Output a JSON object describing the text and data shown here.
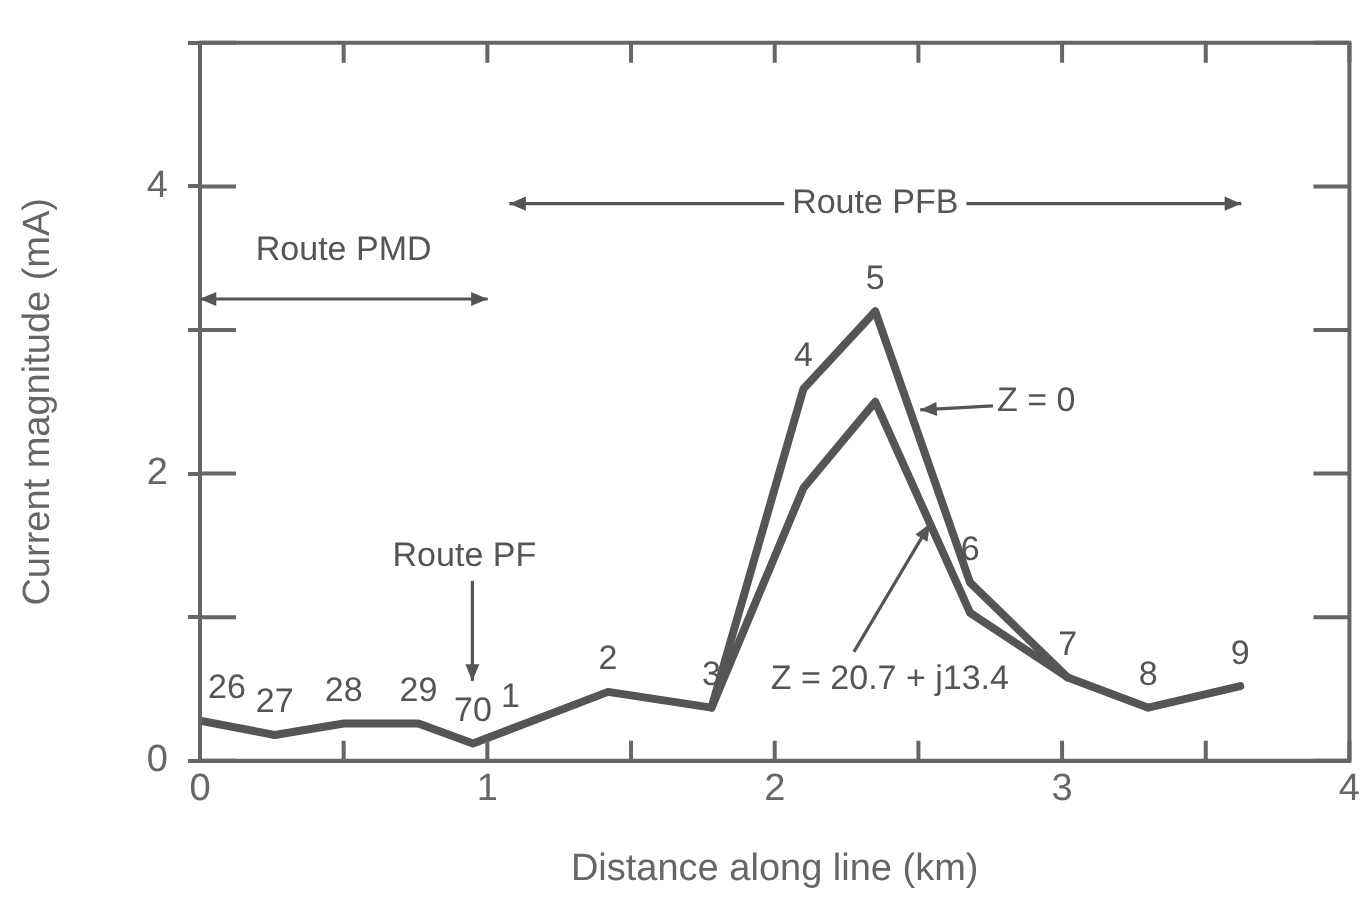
{
  "chart_data": {
    "type": "line",
    "xlabel": "Distance along line (km)",
    "ylabel": "Current magnitude (mA)",
    "xlim": [
      0,
      4
    ],
    "ylim": [
      0,
      5
    ],
    "xticks": [
      0,
      {
        "value": 0.5,
        "label": null
      },
      1,
      {
        "value": 1.5,
        "label": null
      },
      2,
      {
        "value": 2.5,
        "label": null
      },
      3,
      {
        "value": 3.5,
        "label": null
      },
      4
    ],
    "yticks": [
      0,
      {
        "value": 1,
        "label": null
      },
      2,
      {
        "value": 3,
        "label": null
      },
      4,
      {
        "value": 5,
        "label": null
      }
    ],
    "grid": false,
    "legend": false,
    "marker": "none",
    "line_style": "solid",
    "series": [
      {
        "color": "#555555",
        "x": [
          0,
          0.26,
          0.5,
          0.76,
          0.95,
          1.08,
          1.42,
          1.78,
          2.1,
          2.35,
          2.68,
          3.02,
          3.3,
          3.62
        ],
        "values": [
          0.28,
          0.18,
          0.26,
          0.26,
          0.12,
          0.22,
          0.48,
          0.37,
          2.59,
          3.13,
          1.24,
          0.58,
          0.37,
          0.52
        ]
      },
      {
        "color": "#555555",
        "x": [
          1.78,
          2.1,
          2.35,
          2.68,
          3.02
        ],
        "values": [
          0.37,
          1.9,
          2.5,
          1.03,
          0.58
        ]
      }
    ],
    "annotations": [
      {
        "text": "26",
        "x": 0,
        "y": 0.28
      },
      {
        "text": "27",
        "x": 0.26,
        "y": 0.18
      },
      {
        "text": "28",
        "x": 0.5,
        "y": 0.26
      },
      {
        "text": "29",
        "x": 0.76,
        "y": 0.26
      },
      {
        "text": "70",
        "x": 0.95,
        "y": 0.12
      },
      {
        "text": "1",
        "x": 1.08,
        "y": 0.22
      },
      {
        "text": "2",
        "x": 1.42,
        "y": 0.48
      },
      {
        "text": "3",
        "x": 1.78,
        "y": 0.37
      },
      {
        "text": "4",
        "x": 2.1,
        "y": 2.59
      },
      {
        "text": "5",
        "x": 2.35,
        "y": 3.13
      },
      {
        "text": "6",
        "x": 2.68,
        "y": 1.24
      },
      {
        "text": "7",
        "x": 3.02,
        "y": 0.58
      },
      {
        "text": "8",
        "x": 3.3,
        "y": 0.37
      },
      {
        "text": "9",
        "x": 3.62,
        "y": 0.52
      },
      "Route PMD",
      "Route PFB",
      "Route PF",
      "Z = 0",
      {
        "text": "Z = 20.7 + j13.4",
        "x": 2.54,
        "y": 1.65
      }
    ]
  }
}
